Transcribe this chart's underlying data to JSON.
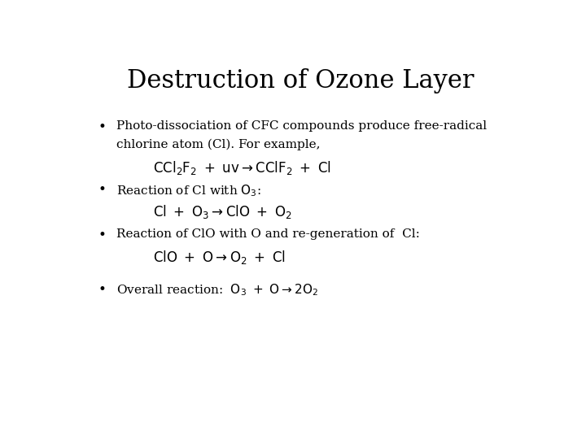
{
  "title": "Destruction of Ozone Layer",
  "background_color": "#ffffff",
  "text_color": "#000000",
  "title_fontsize": 22,
  "body_fontsize": 11,
  "equation_fontsize": 12,
  "font_family": "DejaVu Serif",
  "bullet1_line1": "Photo-dissociation of CFC compounds produce free-radical",
  "bullet1_line2": "chlorine atom (Cl). For example,",
  "eq1": "$\\mathrm{CCl_2F_2 \\ + \\ uv \\rightarrow CClF_2 \\ + \\ Cl}$",
  "bullet2": "Reaction of Cl with $\\mathrm{O_3}$:",
  "eq2": "$\\mathrm{Cl \\ + \\ O_3 \\rightarrow ClO \\ + \\ O_2}$",
  "bullet3": "Reaction of ClO with O and re-generation of  Cl:",
  "eq3": "$\\mathrm{ClO \\ + \\ O \\rightarrow O_2 \\ + \\ Cl}$",
  "bullet4": "Overall reaction:  $\\mathrm{O_3 \\ + \\ O \\rightarrow 2O_2}$"
}
